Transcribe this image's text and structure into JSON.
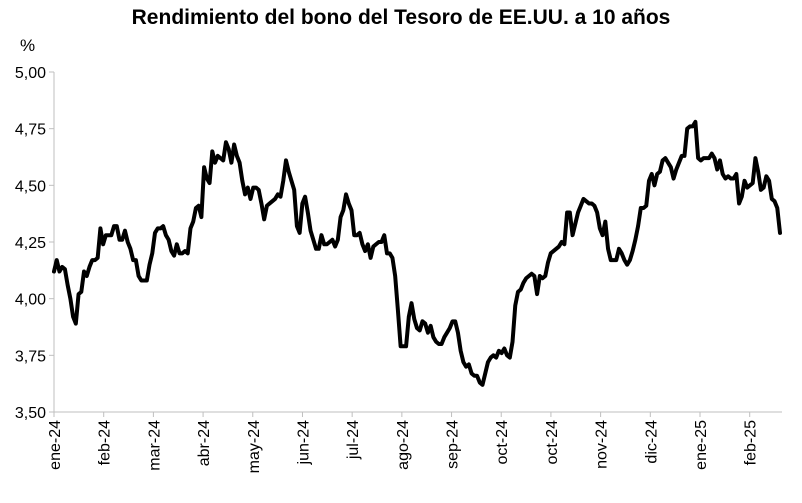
{
  "chart_data": {
    "type": "line",
    "title": "Rendimiento del bono del Tesoro de EE.UU. a 10 años",
    "ylabel": "%",
    "xlabel": "",
    "ylim": [
      3.5,
      5.0
    ],
    "yticks": [
      "3,50",
      "3,75",
      "4,00",
      "4,25",
      "4,50",
      "4,75",
      "5,00"
    ],
    "ytick_values": [
      3.5,
      3.75,
      4.0,
      4.25,
      4.5,
      4.75,
      5.0
    ],
    "xticks": [
      "ene-24",
      "feb-24",
      "mar-24",
      "abr-24",
      "may-24",
      "jun-24",
      "jul-24",
      "ago-24",
      "sep-24",
      "oct-24",
      "oct-24",
      "nov-24",
      "dic-24",
      "ene-25",
      "feb-25"
    ],
    "grid": false,
    "line_color": "#000000",
    "series": [
      {
        "values": [
          4.12,
          4.17,
          4.12,
          4.14,
          4.13,
          4.06,
          4.0,
          3.92,
          3.89,
          4.02,
          4.03,
          4.12,
          4.1,
          4.14,
          4.17,
          4.17,
          4.18,
          4.31,
          4.24,
          4.28,
          4.28,
          4.28,
          4.32,
          4.32,
          4.26,
          4.26,
          4.3,
          4.25,
          4.22,
          4.17,
          4.17,
          4.1,
          4.08,
          4.08,
          4.08,
          4.15,
          4.2,
          4.29,
          4.31,
          4.31,
          4.32,
          4.28,
          4.26,
          4.21,
          4.19,
          4.24,
          4.2,
          4.2,
          4.21,
          4.2,
          4.31,
          4.34,
          4.4,
          4.41,
          4.36,
          4.58,
          4.53,
          4.51,
          4.65,
          4.6,
          4.63,
          4.62,
          4.61,
          4.69,
          4.66,
          4.6,
          4.68,
          4.63,
          4.6,
          4.52,
          4.46,
          4.49,
          4.44,
          4.49,
          4.49,
          4.48,
          4.42,
          4.35,
          4.41,
          4.42,
          4.43,
          4.44,
          4.46,
          4.45,
          4.52,
          4.61,
          4.56,
          4.52,
          4.48,
          4.32,
          4.29,
          4.42,
          4.45,
          4.38,
          4.3,
          4.26,
          4.22,
          4.22,
          4.28,
          4.24,
          4.24,
          4.25,
          4.26,
          4.23,
          4.26,
          4.36,
          4.39,
          4.46,
          4.42,
          4.39,
          4.28,
          4.28,
          4.29,
          4.24,
          4.21,
          4.24,
          4.18,
          4.23,
          4.24,
          4.25,
          4.25,
          4.28,
          4.2,
          4.2,
          4.18,
          4.1,
          3.95,
          3.79,
          3.79,
          3.79,
          3.92,
          3.98,
          3.91,
          3.87,
          3.86,
          3.9,
          3.89,
          3.85,
          3.88,
          3.83,
          3.81,
          3.8,
          3.8,
          3.83,
          3.85,
          3.87,
          3.9,
          3.9,
          3.85,
          3.77,
          3.72,
          3.7,
          3.71,
          3.67,
          3.66,
          3.66,
          3.63,
          3.62,
          3.67,
          3.72,
          3.74,
          3.75,
          3.74,
          3.77,
          3.76,
          3.78,
          3.75,
          3.74,
          3.81,
          3.97,
          4.03,
          4.04,
          4.07,
          4.09,
          4.1,
          4.11,
          4.1,
          4.02,
          4.1,
          4.09,
          4.1,
          4.16,
          4.2,
          4.21,
          4.22,
          4.23,
          4.25,
          4.24,
          4.38,
          4.38,
          4.28,
          4.33,
          4.38,
          4.41,
          4.44,
          4.43,
          4.42,
          4.42,
          4.41,
          4.38,
          4.31,
          4.28,
          4.34,
          4.22,
          4.17,
          4.17,
          4.17,
          4.22,
          4.2,
          4.17,
          4.15,
          4.17,
          4.21,
          4.26,
          4.32,
          4.4,
          4.4,
          4.41,
          4.52,
          4.55,
          4.5,
          4.55,
          4.56,
          4.61,
          4.62,
          4.6,
          4.58,
          4.53,
          4.57,
          4.6,
          4.63,
          4.63,
          4.75,
          4.76,
          4.76,
          4.78,
          4.62,
          4.61,
          4.62,
          4.62,
          4.62,
          4.64,
          4.62,
          4.57,
          4.61,
          4.55,
          4.53,
          4.54,
          4.53,
          4.53,
          4.55,
          4.42,
          4.45,
          4.52,
          4.49,
          4.5,
          4.51,
          4.62,
          4.56,
          4.48,
          4.49,
          4.54,
          4.52,
          4.44,
          4.43,
          4.4,
          4.29
        ]
      }
    ]
  }
}
